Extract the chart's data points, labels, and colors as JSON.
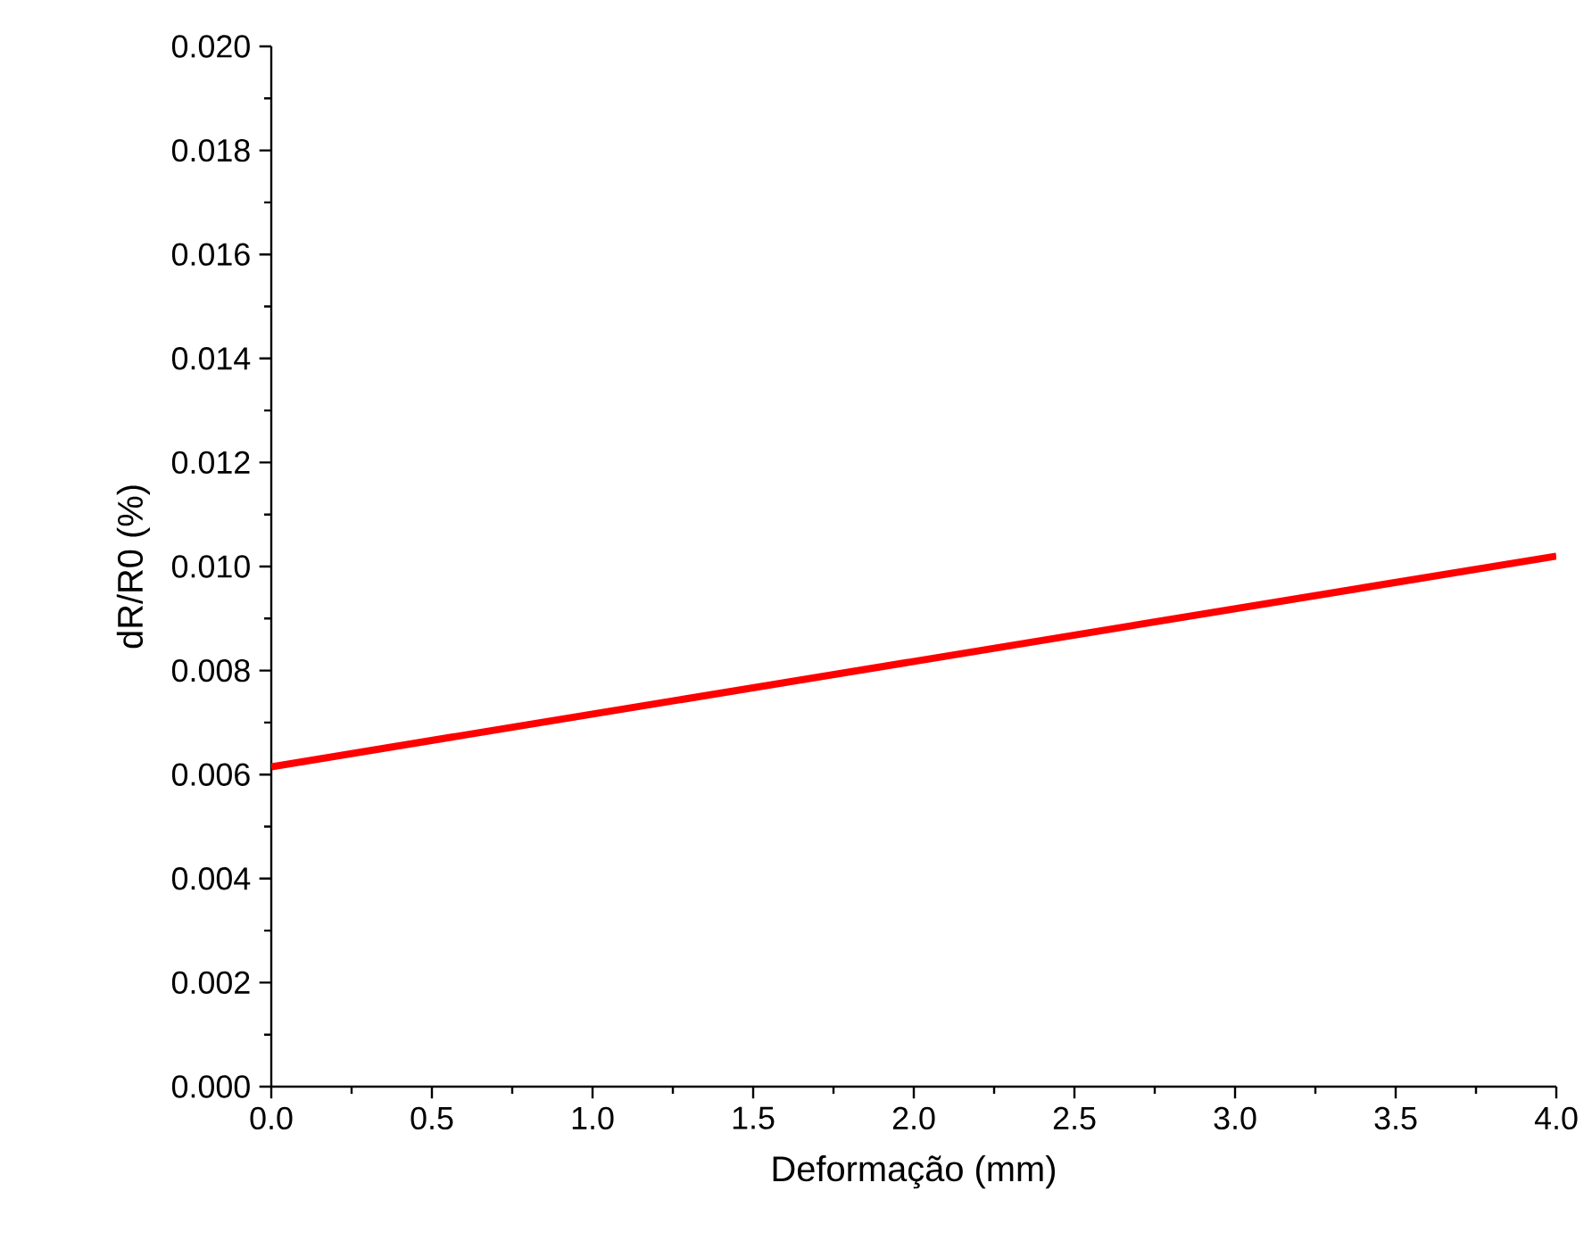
{
  "chart_data": {
    "type": "line",
    "xlabel": "Deformação (mm)",
    "ylabel": "dR/R0 (%)",
    "x": [
      0,
      4.0
    ],
    "values": [
      0.00615,
      0.0102
    ],
    "color": "#ff0000",
    "xlim": [
      0,
      4.0
    ],
    "ylim": [
      0,
      0.02
    ],
    "xticks": [
      {
        "value": 0,
        "label": "0.0"
      },
      {
        "value": 0.5,
        "label": "0.5"
      },
      {
        "value": 1,
        "label": "1.0"
      },
      {
        "value": 1.5,
        "label": "1.5"
      },
      {
        "value": 2,
        "label": "2.0"
      },
      {
        "value": 2.5,
        "label": "2.5"
      },
      {
        "value": 3,
        "label": "3.0"
      },
      {
        "value": 3.5,
        "label": "3.5"
      },
      {
        "value": 4,
        "label": "4.0"
      }
    ],
    "yticks": [
      {
        "value": 0,
        "label": "0.000"
      },
      {
        "value": 0.002,
        "label": "0.002"
      },
      {
        "value": 0.004,
        "label": "0.004"
      },
      {
        "value": 0.006,
        "label": "0.006"
      },
      {
        "value": 0.008,
        "label": "0.008"
      },
      {
        "value": 0.01,
        "label": "0.010"
      },
      {
        "value": 0.012,
        "label": "0.012"
      },
      {
        "value": 0.014,
        "label": "0.014"
      },
      {
        "value": 0.016,
        "label": "0.016"
      },
      {
        "value": 0.018,
        "label": "0.018"
      },
      {
        "value": 0.02,
        "label": "0.020"
      }
    ],
    "grid": false,
    "marker": "none",
    "line_style": "solid"
  }
}
